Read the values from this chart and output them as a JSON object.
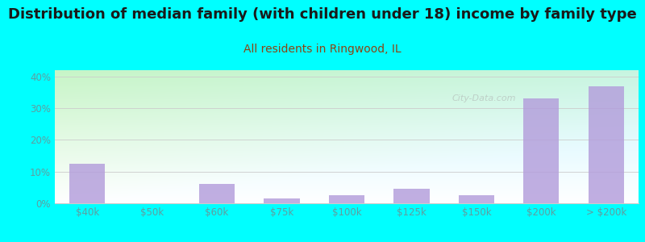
{
  "title": "Distribution of median family (with children under 18) income by family type",
  "subtitle": "All residents in Ringwood, IL",
  "categories": [
    "$40k",
    "$50k",
    "$60k",
    "$75k",
    "$100k",
    "$125k",
    "$150k",
    "$200k",
    "> $200k"
  ],
  "values": [
    12.5,
    0,
    6.0,
    1.5,
    2.5,
    4.5,
    2.5,
    33.0,
    37.0
  ],
  "bar_color": "#b39ddb",
  "title_color": "#1a1a1a",
  "subtitle_color": "#8B4513",
  "tick_color": "#5f9ea0",
  "background_outer": "#00FFFF",
  "ylim": [
    0,
    42
  ],
  "yticks": [
    0,
    10,
    20,
    30,
    40
  ],
  "title_fontsize": 13,
  "subtitle_fontsize": 10,
  "tick_fontsize": 8.5,
  "grid_color": "#cccccc",
  "bar_alpha": 0.82,
  "bar_width": 0.55
}
